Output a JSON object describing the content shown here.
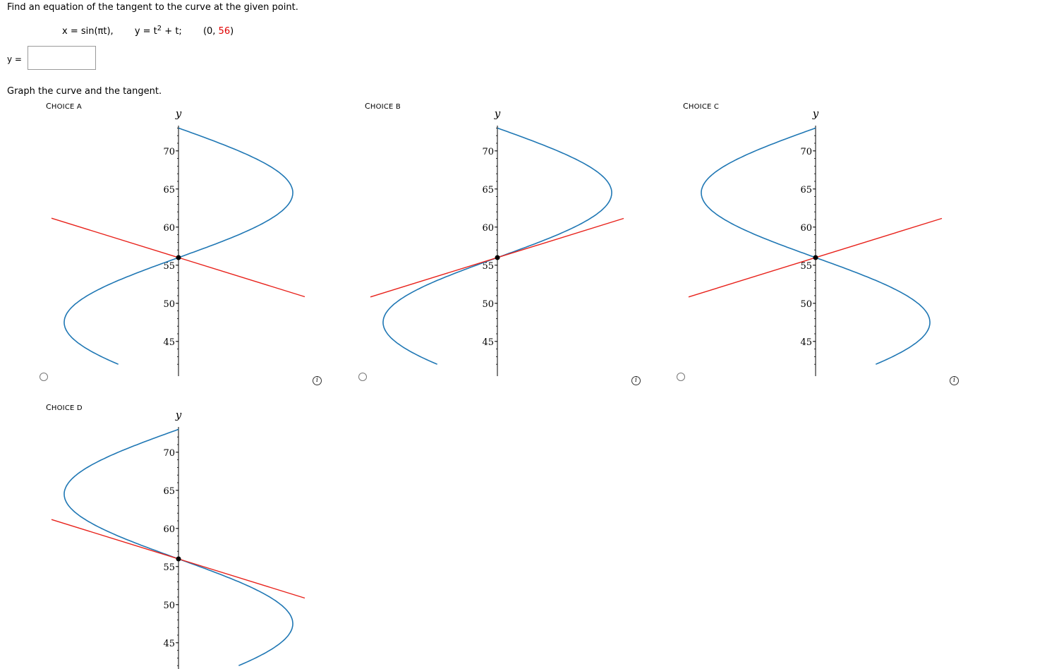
{
  "question": {
    "prompt": "Find an equation of the tangent to the curve at the given point.",
    "x_eq": "x = sin(πt),",
    "y_eq_prefix": "y = t",
    "y_eq_exp": "2",
    "y_eq_suffix": " + t;",
    "point_prefix": "(0, ",
    "point_value": "56",
    "point_suffix": ")"
  },
  "answer": {
    "label": "y =",
    "value": "",
    "placeholder": ""
  },
  "graph_prompt": "Graph the curve and the tangent.",
  "choices": [
    {
      "label": "Choice A",
      "label_first": "C",
      "label_rest": "HOICE A",
      "selected": false,
      "x_scale": 1,
      "tangent_slope_sign": -1
    },
    {
      "label": "Choice B",
      "label_first": "C",
      "label_rest": "HOICE B",
      "selected": false,
      "x_scale": -1,
      "tangent_slope_sign": 1
    },
    {
      "label": "Choice C",
      "label_first": "C",
      "label_rest": "HOICE C",
      "selected": false,
      "x_scale": 1,
      "tangent_slope_sign": 1
    },
    {
      "label": "Choice D",
      "label_first": "C",
      "label_rest": "HOICE D",
      "selected": false,
      "x_scale": -1,
      "tangent_slope_sign": -1
    }
  ],
  "plot": {
    "axis_label": "y",
    "y_ticks": [
      "70",
      "65",
      "60",
      "55",
      "50",
      "45"
    ],
    "point": [
      0,
      56
    ],
    "curve_color": "#1f77b4",
    "tangent_color": "#e8221b"
  },
  "info_icon": "i"
}
